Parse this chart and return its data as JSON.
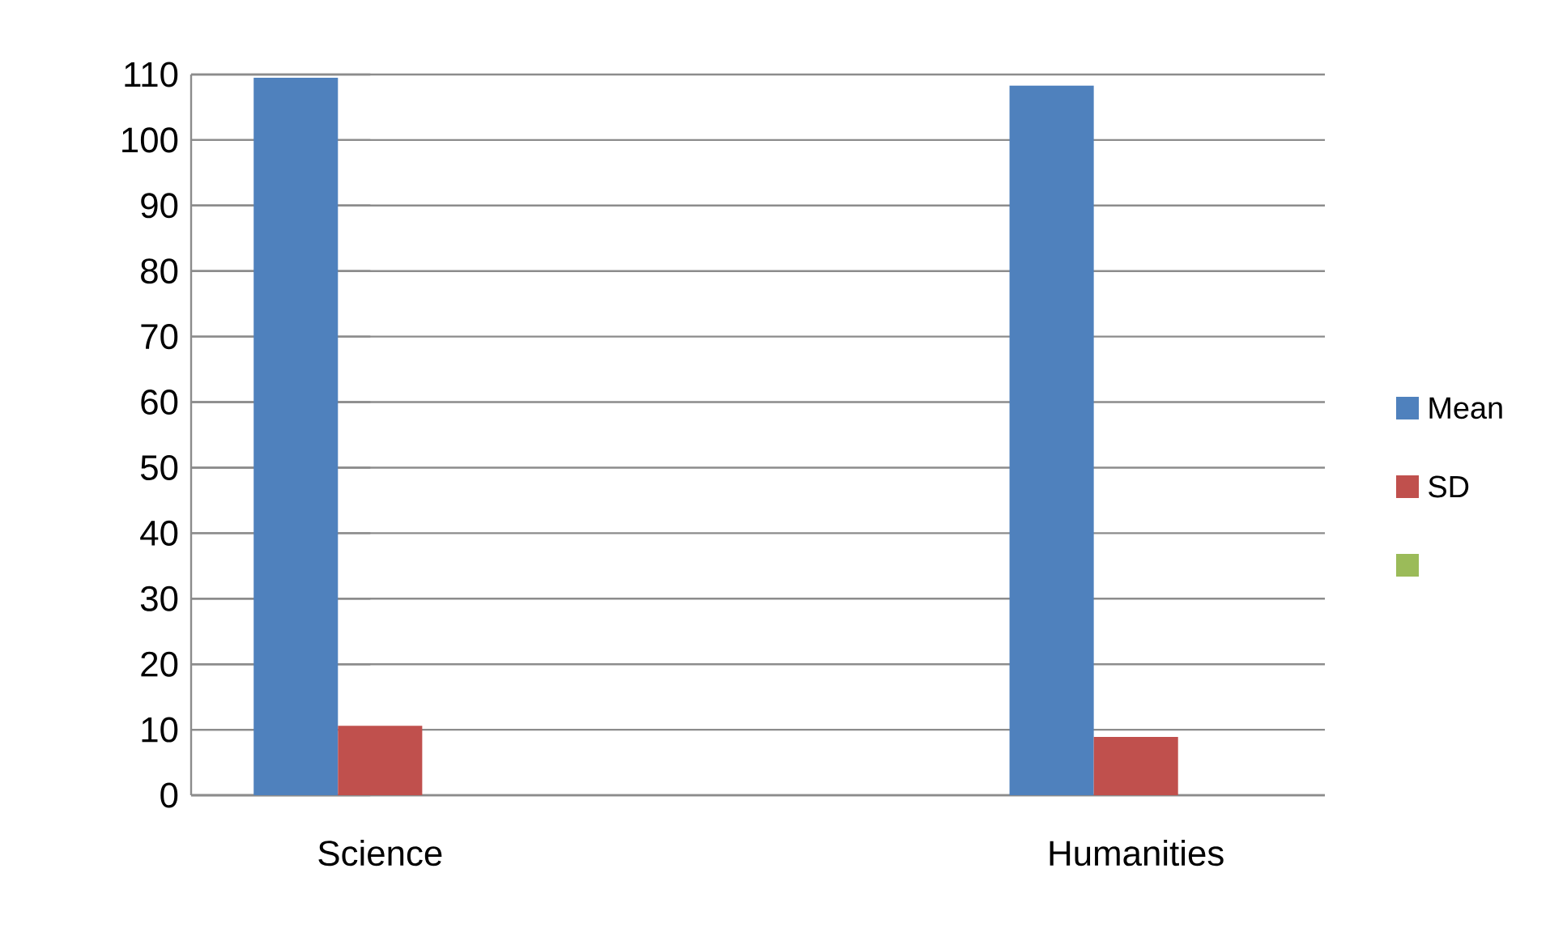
{
  "chart_data": {
    "type": "bar",
    "categories": [
      "Science",
      null,
      "Humanities"
    ],
    "series": [
      {
        "name": "Mean",
        "color": "#4f81bd",
        "values": [
          109.5,
          null,
          108.3
        ]
      },
      {
        "name": "SD",
        "color": "#c0504d",
        "values": [
          10.6,
          null,
          8.9
        ]
      },
      {
        "color": "#9bbb59",
        "values": [
          null,
          null,
          null
        ]
      }
    ],
    "ylim": [
      0,
      110
    ],
    "yticks": [
      0,
      10,
      20,
      30,
      40,
      50,
      60,
      70,
      80,
      90,
      100,
      110
    ],
    "grid": "y",
    "legend": "right"
  }
}
